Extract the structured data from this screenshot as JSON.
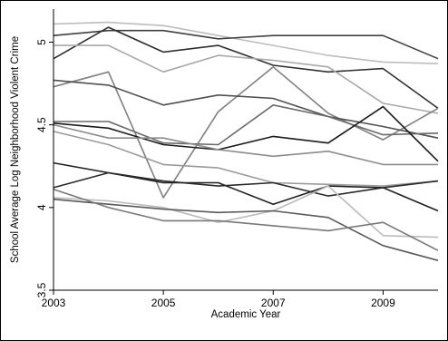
{
  "chart_data": {
    "type": "line",
    "xlabel": "Academic Year",
    "ylabel": "School Average Log Neighborhood Violent Crime",
    "xlim": [
      2003,
      2010
    ],
    "ylim": [
      3.5,
      5.2
    ],
    "x": [
      2003,
      2004,
      2005,
      2006,
      2007,
      2008,
      2009,
      2010
    ],
    "xticks": [
      2003,
      2005,
      2007,
      2009
    ],
    "yticks": [
      3.5,
      4,
      4.5,
      5
    ],
    "xtick_labels": [
      "2003",
      "2005",
      "2007",
      "2009"
    ],
    "ytick_labels": [
      "3.5",
      "4",
      "4.5",
      "5"
    ],
    "grid": false,
    "legend": "none",
    "series": [
      {
        "color": "#bdbdbd",
        "values": [
          5.11,
          5.12,
          5.1,
          5.04,
          4.98,
          4.92,
          4.88,
          4.87
        ]
      },
      {
        "color": "#404040",
        "values": [
          5.04,
          5.07,
          5.07,
          5.02,
          5.04,
          5.04,
          5.04,
          4.9
        ]
      },
      {
        "color": "#303030",
        "values": [
          4.9,
          5.09,
          4.94,
          4.98,
          4.86,
          4.82,
          4.84,
          4.6
        ]
      },
      {
        "color": "#a8a8a8",
        "values": [
          4.98,
          4.98,
          4.82,
          4.92,
          4.89,
          4.85,
          4.63,
          4.57
        ]
      },
      {
        "color": "#808080",
        "values": [
          4.73,
          4.82,
          4.06,
          4.58,
          4.85,
          4.57,
          4.41,
          4.6
        ]
      },
      {
        "color": "#505050",
        "values": [
          4.77,
          4.74,
          4.62,
          4.68,
          4.66,
          4.55,
          4.49,
          4.42
        ]
      },
      {
        "color": "#6a6a6a",
        "values": [
          4.52,
          4.52,
          4.39,
          4.38,
          4.62,
          4.55,
          4.44,
          4.45
        ]
      },
      {
        "color": "#1a1a1a",
        "values": [
          4.51,
          4.48,
          4.38,
          4.35,
          4.43,
          4.39,
          4.61,
          4.28
        ]
      },
      {
        "color": "#9a9a9a",
        "values": [
          4.46,
          4.38,
          4.26,
          4.24,
          4.15,
          4.14,
          4.13,
          4.16
        ]
      },
      {
        "color": "#8c8c8c",
        "values": [
          4.5,
          4.42,
          4.42,
          4.35,
          4.31,
          4.34,
          4.26,
          4.26
        ]
      },
      {
        "color": "#202020",
        "values": [
          4.27,
          4.21,
          4.15,
          4.15,
          4.02,
          4.13,
          4.12,
          3.98
        ]
      },
      {
        "color": "#2a2a2a",
        "values": [
          4.12,
          4.21,
          4.16,
          4.13,
          4.15,
          4.07,
          4.12,
          4.16
        ]
      },
      {
        "color": "#bcbcbc",
        "values": [
          4.06,
          4.04,
          4.0,
          3.91,
          3.98,
          4.13,
          3.83,
          3.82
        ]
      },
      {
        "color": "#5a5a5a",
        "values": [
          4.05,
          4.02,
          3.99,
          3.97,
          3.98,
          3.94,
          3.77,
          3.68
        ]
      },
      {
        "color": "#787878",
        "values": [
          4.11,
          4.0,
          3.92,
          3.92,
          3.89,
          3.86,
          3.91,
          3.74
        ]
      }
    ]
  }
}
